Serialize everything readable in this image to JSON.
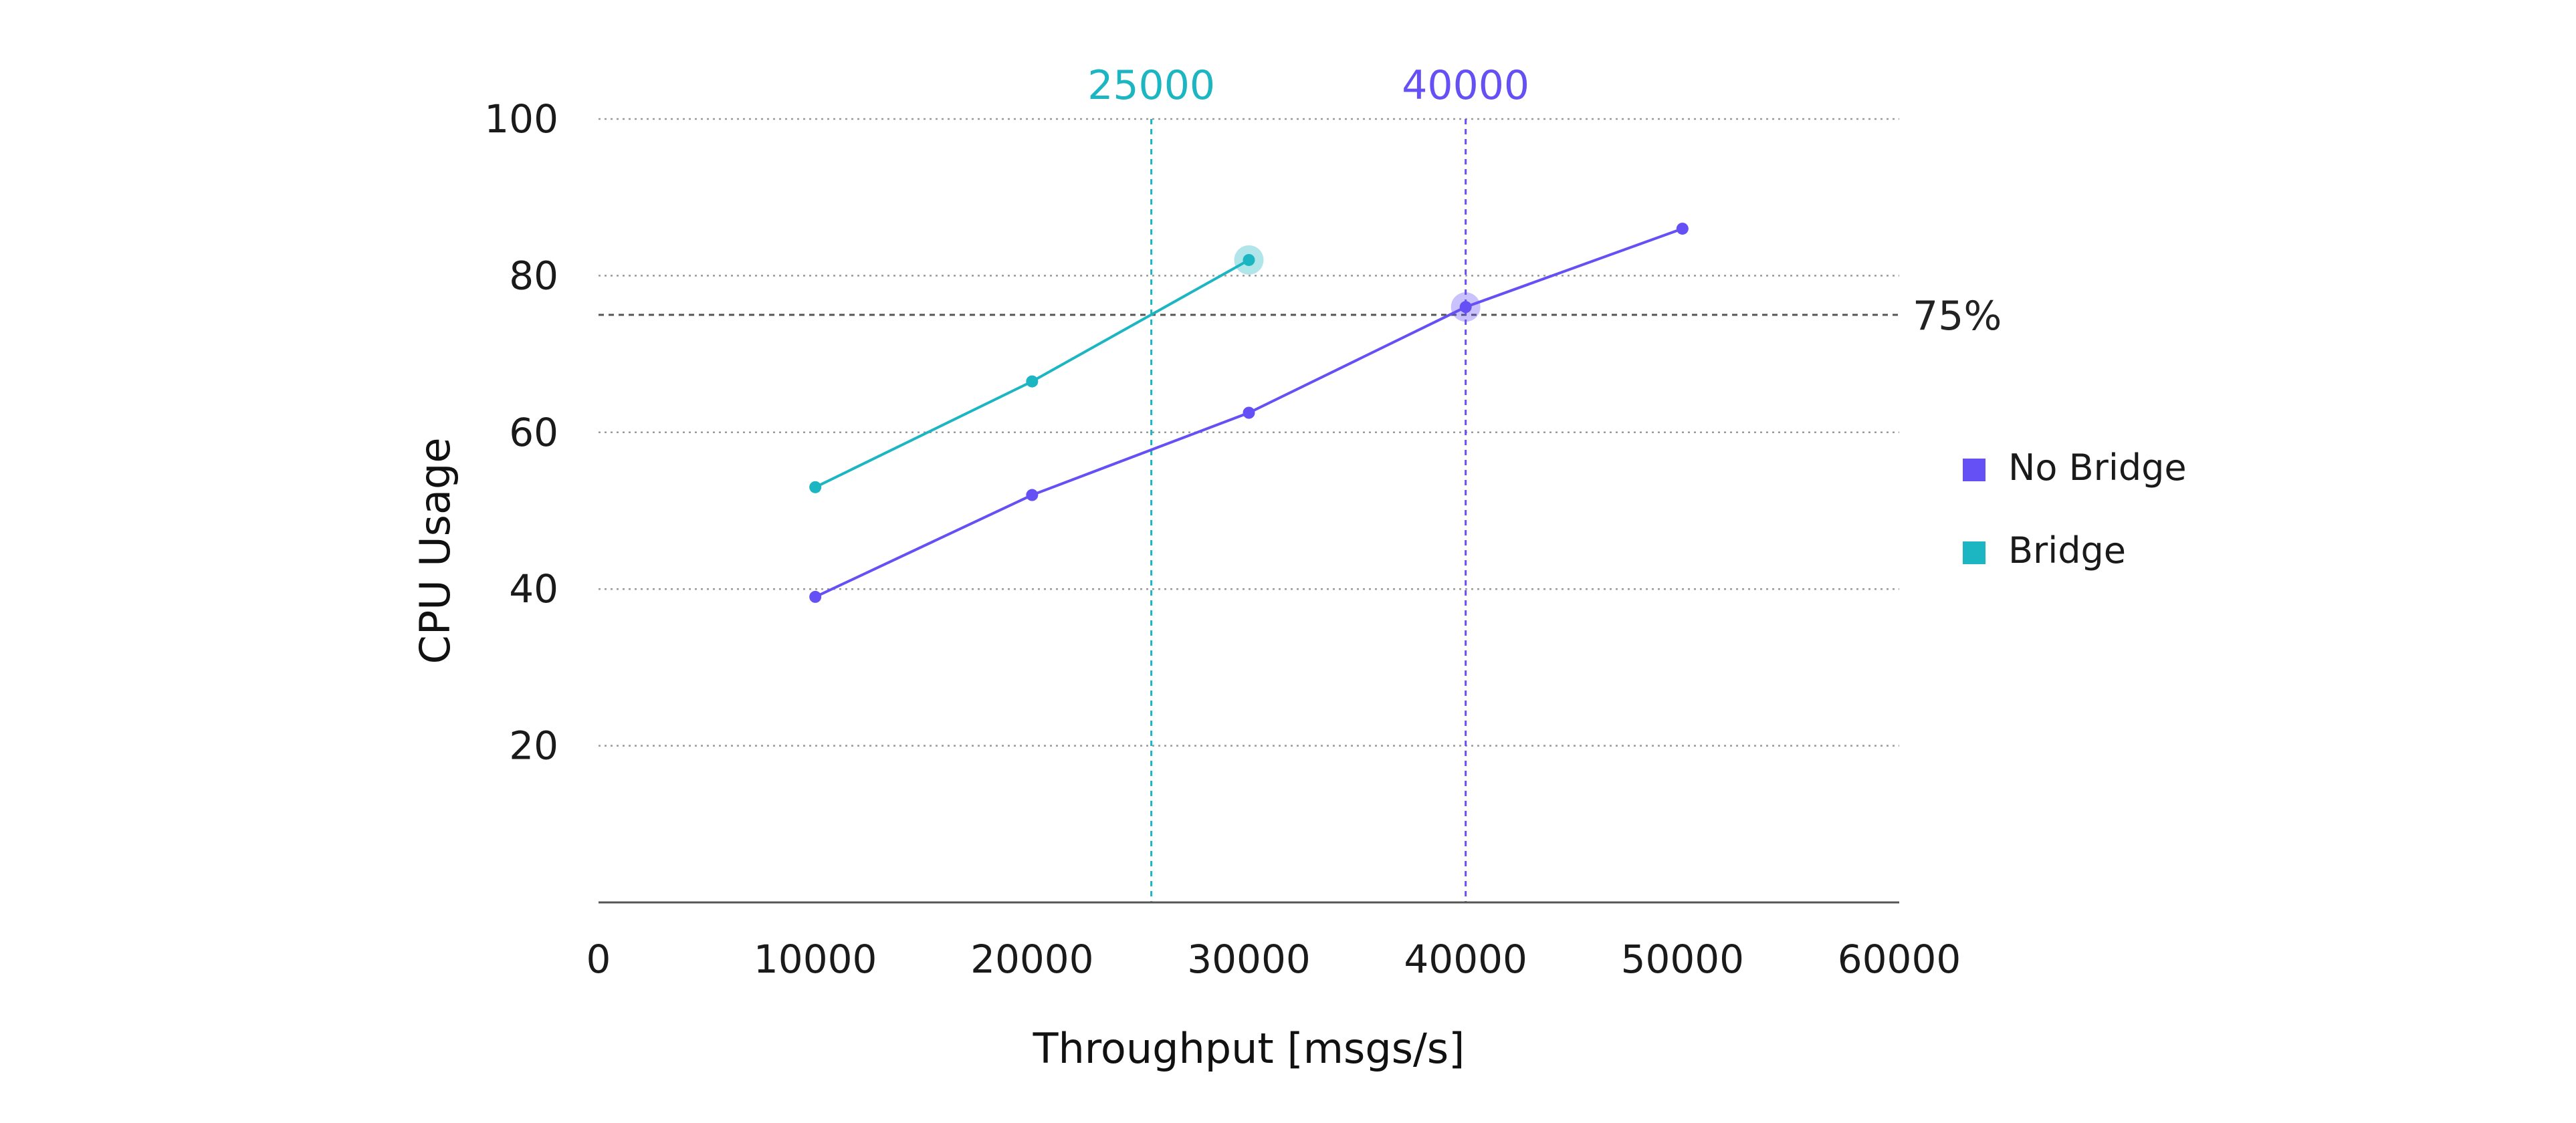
{
  "chart_data": {
    "type": "line",
    "xlabel": "Throughput [msgs/s]",
    "ylabel": "CPU Usage",
    "xlim": [
      0,
      60000
    ],
    "ylim": [
      0,
      100
    ],
    "x_ticks": [
      "0",
      "10000",
      "20000",
      "30000",
      "40000",
      "50000",
      "60000"
    ],
    "y_ticks": [
      "20",
      "40",
      "60",
      "80",
      "100"
    ],
    "grid": "horizontal dotted",
    "legend_position": "right",
    "series": [
      {
        "name": "No Bridge",
        "color": "#6450f5",
        "x": [
          10000,
          20000,
          30000,
          40000,
          50000
        ],
        "y": [
          39,
          52,
          62.5,
          76,
          86
        ],
        "highlight_x": 40000
      },
      {
        "name": "Bridge",
        "color": "#1cb5c2",
        "x": [
          10000,
          20000,
          30000
        ],
        "y": [
          53,
          66.5,
          82
        ],
        "highlight_x": 30000
      }
    ],
    "reference_lines": [
      {
        "orientation": "horizontal",
        "value": 75,
        "label": "75%",
        "color": "#555555"
      },
      {
        "orientation": "vertical",
        "value": 25500,
        "label": "25000",
        "color": "#1cb5c2"
      },
      {
        "orientation": "vertical",
        "value": 40000,
        "label": "40000",
        "color": "#6450f5"
      }
    ]
  }
}
